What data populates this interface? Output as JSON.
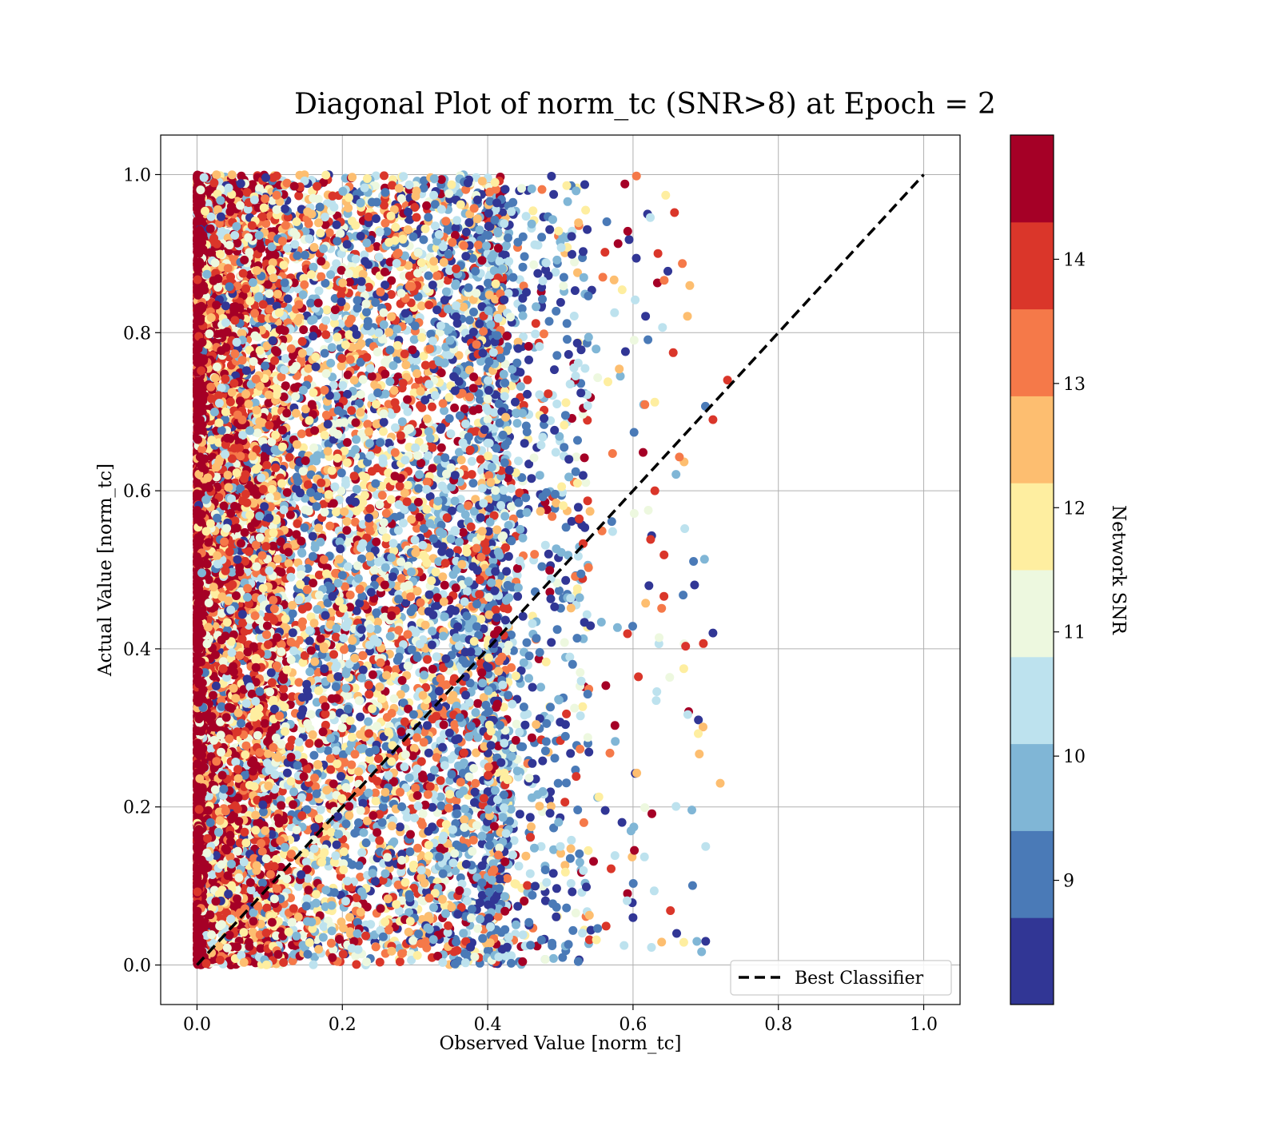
{
  "chart_data": {
    "type": "scatter",
    "title": "Diagonal Plot of norm_tc (SNR>8) at Epoch = 2",
    "xlabel": "Observed Value [norm_tc]",
    "ylabel": "Actual Value [norm_tc]",
    "xlim": [
      -0.05,
      1.05
    ],
    "ylim": [
      -0.05,
      1.05
    ],
    "xticks": [
      0.0,
      0.2,
      0.4,
      0.6,
      0.8,
      1.0
    ],
    "yticks": [
      0.0,
      0.2,
      0.4,
      0.6,
      0.8,
      1.0
    ],
    "xtick_labels": [
      "0.0",
      "0.2",
      "0.4",
      "0.6",
      "0.8",
      "1.0"
    ],
    "ytick_labels": [
      "0.0",
      "0.2",
      "0.4",
      "0.6",
      "0.8",
      "1.0"
    ],
    "grid": true,
    "legend": {
      "placement": "lower-right",
      "entries": [
        {
          "label": "Best Classifier",
          "style": "dashed",
          "color": "#000000"
        }
      ]
    },
    "reference_line": {
      "label": "Best Classifier",
      "x": [
        0.0,
        1.0
      ],
      "y": [
        0.0,
        1.0
      ]
    },
    "colorbar": {
      "label": "Network SNR",
      "range": [
        8,
        15
      ],
      "ticks": [
        9,
        10,
        11,
        12,
        13,
        14
      ],
      "tick_labels": [
        "9",
        "10",
        "11",
        "12",
        "13",
        "14"
      ],
      "bins": [
        {
          "from": 8,
          "to": 8.7,
          "color": "#313695"
        },
        {
          "from": 8.7,
          "to": 9.4,
          "color": "#4a7ab7"
        },
        {
          "from": 9.4,
          "to": 10.1,
          "color": "#80b6d6"
        },
        {
          "from": 10.1,
          "to": 10.8,
          "color": "#bde2ee"
        },
        {
          "from": 10.8,
          "to": 11.5,
          "color": "#edf8df"
        },
        {
          "from": 11.5,
          "to": 12.2,
          "color": "#feeea0"
        },
        {
          "from": 12.2,
          "to": 12.9,
          "color": "#fdbe70"
        },
        {
          "from": 12.9,
          "to": 13.6,
          "color": "#f57949"
        },
        {
          "from": 13.6,
          "to": 14.3,
          "color": "#da362a"
        },
        {
          "from": 14.3,
          "to": 15,
          "color": "#a50026"
        }
      ]
    },
    "series": [
      {
        "points_sample": [
          {
            "x": 0.0,
            "y": 0.5,
            "snr": 14.8
          },
          {
            "x": 0.01,
            "y": 0.25,
            "snr": 14.6
          },
          {
            "x": 0.03,
            "y": 0.7,
            "snr": 13.8
          },
          {
            "x": 0.05,
            "y": 0.95,
            "snr": 13.2
          },
          {
            "x": 0.12,
            "y": 0.55,
            "snr": 12.5
          },
          {
            "x": 0.2,
            "y": 0.3,
            "snr": 11.2
          },
          {
            "x": 0.25,
            "y": 0.8,
            "snr": 10.5
          },
          {
            "x": 0.3,
            "y": 0.1,
            "snr": 9.5
          },
          {
            "x": 0.35,
            "y": 0.45,
            "snr": 8.5
          },
          {
            "x": 0.4,
            "y": 0.6,
            "snr": 9.0
          },
          {
            "x": 0.5,
            "y": 0.15,
            "snr": 10.2
          },
          {
            "x": 0.52,
            "y": 0.74,
            "snr": 14.5
          },
          {
            "x": 0.6,
            "y": 0.06,
            "snr": 8.4
          },
          {
            "x": 0.62,
            "y": 0.95,
            "snr": 8.3
          },
          {
            "x": 0.63,
            "y": 0.6,
            "snr": 14.0
          },
          {
            "x": 0.66,
            "y": 0.04,
            "snr": 8.2
          },
          {
            "x": 0.69,
            "y": 0.31,
            "snr": 8.4
          },
          {
            "x": 0.7,
            "y": 0.03,
            "snr": 8.1
          },
          {
            "x": 0.7,
            "y": 0.15,
            "snr": 10.6
          },
          {
            "x": 0.71,
            "y": 0.69,
            "snr": 14.2
          },
          {
            "x": 0.71,
            "y": 0.42,
            "snr": 8.5
          },
          {
            "x": 0.72,
            "y": 0.23,
            "snr": 12.6
          },
          {
            "x": 0.73,
            "y": 0.74,
            "snr": 14.1
          }
        ],
        "distribution": "dense in x 0.0–0.45 across y 0.0–1.0 (highest SNR concentrated at x≈0.0), sparser points out to x≈0.73"
      }
    ]
  }
}
